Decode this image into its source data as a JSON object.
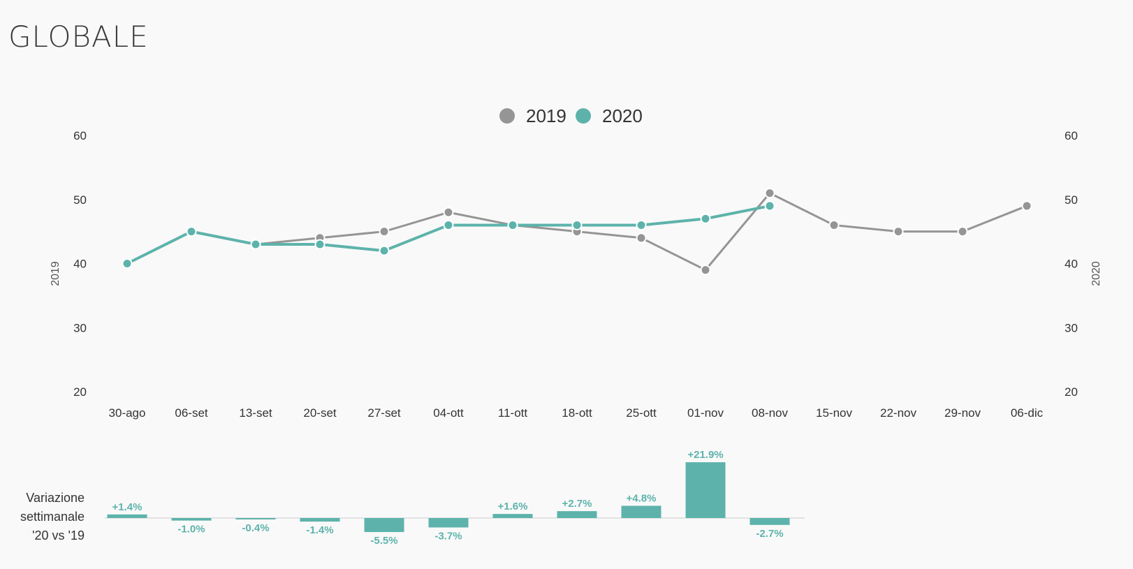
{
  "title": "GLOBALE",
  "colors": {
    "series_2019": "#959595",
    "series_2020": "#5db3ab",
    "background": "#f9f9f9",
    "text": "#333333",
    "baseline": "#e2e2e2"
  },
  "variation_label": [
    "Variazione",
    "settimanale",
    "'20 vs '19"
  ],
  "chart_data": [
    {
      "type": "line",
      "title": "",
      "categories": [
        "30-ago",
        "06-set",
        "13-set",
        "20-set",
        "27-set",
        "04-ott",
        "11-ott",
        "18-ott",
        "25-ott",
        "01-nov",
        "08-nov",
        "15-nov",
        "22-nov",
        "29-nov",
        "06-dic"
      ],
      "legend": [
        "2019",
        "2020"
      ],
      "legend_position": "top-center",
      "ylabel_left": "2019",
      "ylabel_right": "2020",
      "ylim": [
        20,
        60
      ],
      "yticks": [
        20,
        30,
        40,
        50,
        60
      ],
      "grid": false,
      "series": [
        {
          "name": "2019",
          "axis": "left",
          "values": [
            40,
            45,
            43,
            44,
            45,
            48,
            46,
            45,
            44,
            39,
            51,
            46,
            45,
            45,
            49
          ]
        },
        {
          "name": "2020",
          "axis": "right",
          "values": [
            40,
            45,
            43,
            43,
            42,
            46,
            46,
            46,
            46,
            47,
            49,
            null,
            null,
            null,
            null
          ]
        }
      ]
    },
    {
      "type": "bar",
      "title": "",
      "categories": [
        "30-ago",
        "06-set",
        "13-set",
        "20-set",
        "27-set",
        "04-ott",
        "11-ott",
        "18-ott",
        "25-ott",
        "01-nov",
        "08-nov"
      ],
      "values": [
        1.4,
        -1.0,
        -0.4,
        -1.4,
        -5.5,
        -3.7,
        1.6,
        2.7,
        4.8,
        21.9,
        -2.7
      ],
      "labels": [
        "+1.4%",
        "-1.0%",
        "-0.4%",
        "-1.4%",
        "-5.5%",
        "-3.7%",
        "+1.6%",
        "+2.7%",
        "+4.8%",
        "+21.9%",
        "-2.7%"
      ],
      "unit": "%"
    }
  ]
}
